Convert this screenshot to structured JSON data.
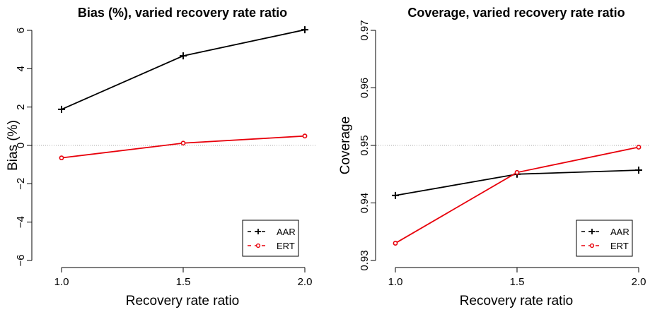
{
  "chart_data": [
    {
      "type": "line",
      "title": "Bias (%), varied recovery rate ratio",
      "xlabel": "Recovery rate ratio",
      "ylabel": "Bias (%)",
      "x": [
        1.0,
        1.5,
        2.0
      ],
      "x_tick_labels": [
        "1.0",
        "1.5",
        "2.0"
      ],
      "y_ticks": [
        6,
        4,
        2,
        0,
        -2,
        -4,
        -6
      ],
      "y_tick_labels": [
        "6",
        "4",
        "2",
        "0",
        "−2",
        "−4",
        "−6"
      ],
      "xlim": [
        1.0,
        2.0
      ],
      "ylim": [
        -6,
        6
      ],
      "reference_line": 0,
      "legend_position": "bottom-right",
      "series": [
        {
          "name": "AAR",
          "values": [
            1.88,
            4.67,
            6.03
          ],
          "color": "#000000",
          "marker": "plus"
        },
        {
          "name": "ERT",
          "values": [
            -0.65,
            0.12,
            0.49
          ],
          "color": "#e8000b",
          "marker": "circle"
        }
      ]
    },
    {
      "type": "line",
      "title": "Coverage, varied recovery rate ratio",
      "xlabel": "Recovery rate ratio",
      "ylabel": "Coverage",
      "x": [
        1.0,
        1.5,
        2.0
      ],
      "x_tick_labels": [
        "1.0",
        "1.5",
        "2.0"
      ],
      "y_ticks": [
        0.97,
        0.96,
        0.95,
        0.94,
        0.93
      ],
      "y_tick_labels": [
        "0.97",
        "0.96",
        "0.95",
        "0.94",
        "0.93"
      ],
      "xlim": [
        1.0,
        2.0
      ],
      "ylim": [
        0.93,
        0.97
      ],
      "reference_line": 0.95,
      "legend_position": "bottom-right",
      "series": [
        {
          "name": "AAR",
          "values": [
            0.9413,
            0.945,
            0.9457
          ],
          "color": "#000000",
          "marker": "plus"
        },
        {
          "name": "ERT",
          "values": [
            0.933,
            0.9453,
            0.9497
          ],
          "color": "#e8000b",
          "marker": "circle"
        }
      ]
    }
  ]
}
